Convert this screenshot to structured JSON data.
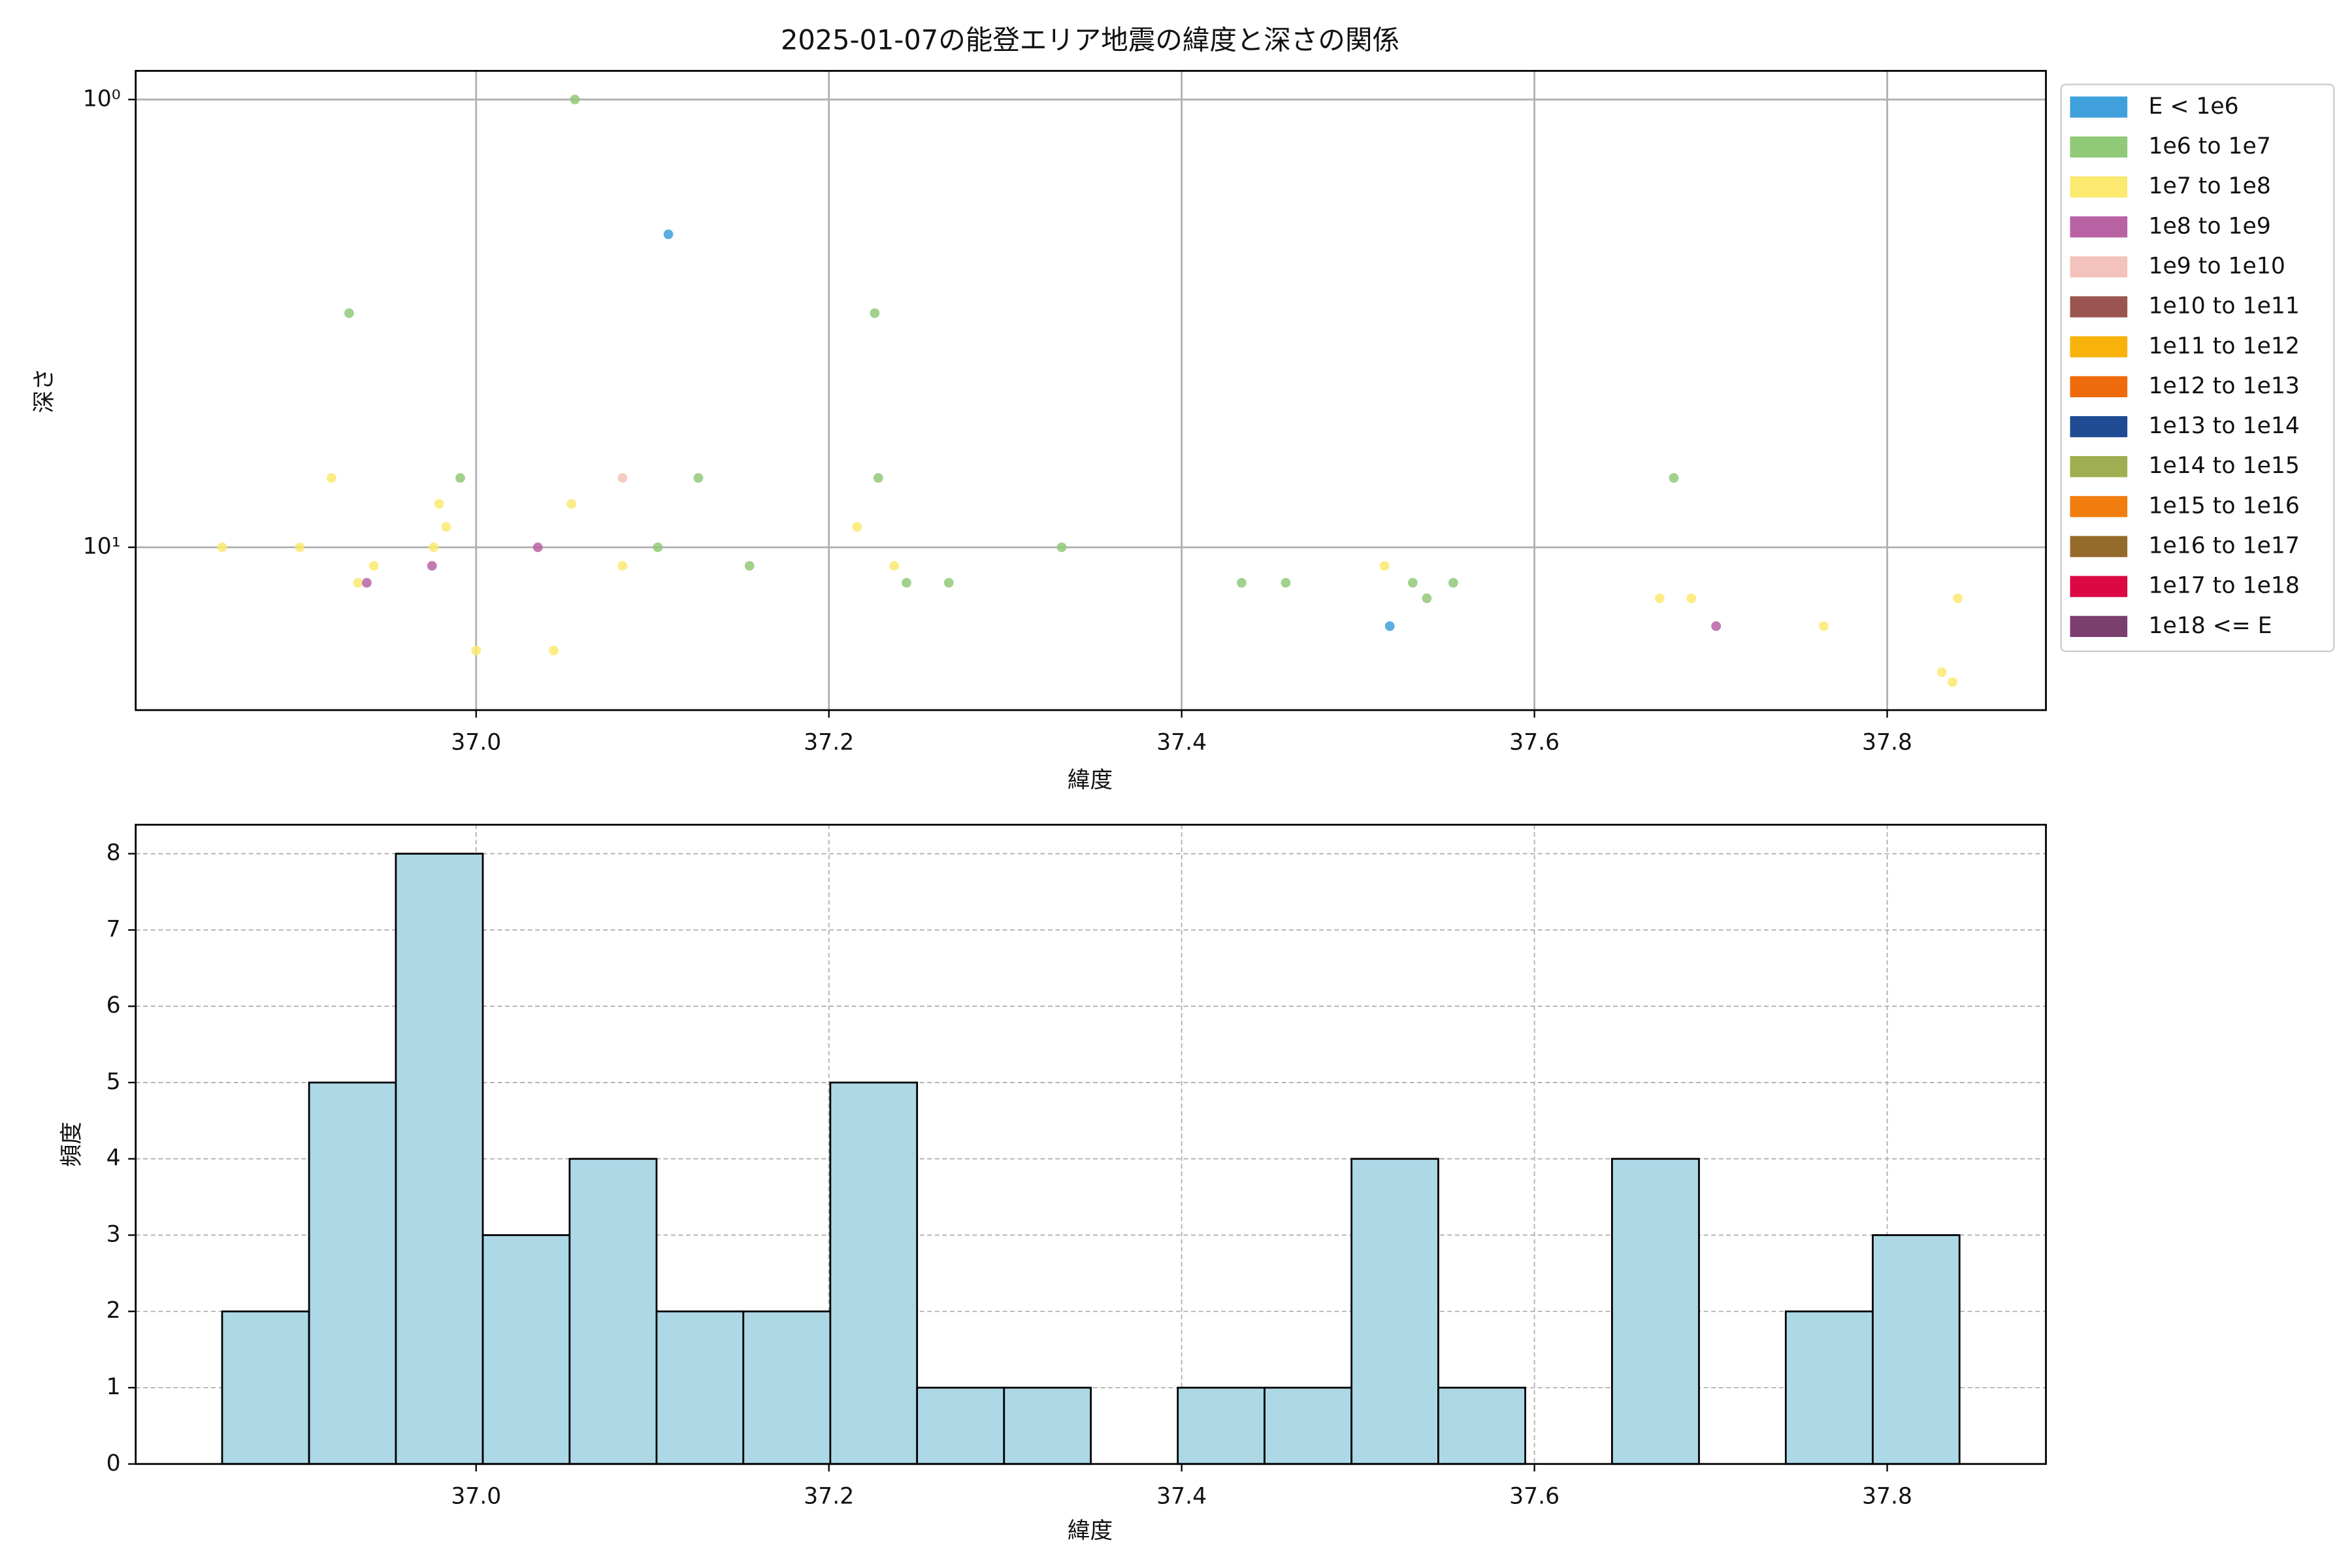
{
  "chart_data": [
    {
      "type": "scatter",
      "title": "2025-01-07の能登エリア地震の緯度と深さの関係",
      "xlabel": "緯度",
      "ylabel": "深さ",
      "xlim": [
        36.807,
        37.89
      ],
      "ylim": [
        0.863,
        23.1
      ],
      "ylog": true,
      "yinverted": true,
      "xticks": [
        {
          "value": 37,
          "label": "37.0"
        },
        37.2,
        37.4,
        37.6,
        37.8
      ],
      "yticks": [
        {
          "value": 1,
          "label": "10⁰"
        },
        {
          "value": 10,
          "label": "10¹"
        }
      ],
      "grid": true,
      "legend": "outside-right",
      "series": [
        {
          "name": "E < 1e6",
          "color": "#3fa0dc",
          "x": [
            37.109,
            37.518
          ],
          "values": [
            2,
            15
          ]
        },
        {
          "name": "1e6 to 1e7",
          "color": "#90c978",
          "x": [
            37.056,
            36.928,
            37.226,
            36.991,
            37.126,
            37.228,
            37.679,
            37.103,
            37.332,
            37.155,
            37.244,
            37.268,
            37.434,
            37.459,
            37.531,
            37.554,
            37.539
          ],
          "values": [
            1,
            3,
            3,
            7,
            7,
            7,
            7,
            10,
            10,
            11,
            12,
            12,
            12,
            12,
            12,
            12,
            13
          ]
        },
        {
          "name": "1e7 to 1e8",
          "color": "#fbe970",
          "x": [
            36.918,
            36.979,
            37.054,
            36.983,
            36.856,
            36.9,
            36.976,
            37.216,
            36.942,
            37.083,
            37.237,
            37.515,
            36.933,
            37.671,
            37.689,
            37.84,
            37.764,
            37.0,
            37.044,
            37.831,
            37.837
          ],
          "values": [
            7,
            8,
            8,
            9,
            10,
            10,
            10,
            9,
            11,
            11,
            11,
            11,
            12,
            13,
            13,
            13,
            15,
            17,
            17,
            19,
            20
          ]
        },
        {
          "name": "1e8 to 1e9",
          "color": "#b862a4",
          "x": [
            37.035,
            36.975,
            36.938,
            37.703
          ],
          "values": [
            10,
            11,
            12,
            15
          ]
        },
        {
          "name": "1e9 to 1e10",
          "color": "#f4c2bc",
          "x": [
            37.083
          ],
          "values": [
            7
          ]
        },
        {
          "name": "1e10 to 1e11",
          "color": "#9b5550",
          "x": [],
          "values": []
        },
        {
          "name": "1e11 to 1e12",
          "color": "#f7b30c",
          "x": [],
          "values": []
        },
        {
          "name": "1e12 to 1e13",
          "color": "#ef6a0b",
          "x": [],
          "values": []
        },
        {
          "name": "1e13 to 1e14",
          "color": "#1e4b92",
          "x": [],
          "values": []
        },
        {
          "name": "1e14 to 1e15",
          "color": "#9eae50",
          "x": [],
          "values": []
        },
        {
          "name": "1e15 to 1e16",
          "color": "#f07d0e",
          "x": [],
          "values": []
        },
        {
          "name": "1e16 to 1e17",
          "color": "#946b2a",
          "x": [],
          "values": []
        },
        {
          "name": "1e17 to 1e18",
          "color": "#dc0843",
          "x": [],
          "values": []
        },
        {
          "name": "1e18 <= E",
          "color": "#7a3f6e",
          "x": [],
          "values": []
        }
      ]
    },
    {
      "type": "histogram",
      "xlabel": "緯度",
      "ylabel": "頻度",
      "xlim": [
        36.807,
        37.89
      ],
      "ylim": [
        0,
        8.38
      ],
      "xticks": [
        {
          "value": 37,
          "label": "37.0"
        },
        37.2,
        37.4,
        37.6,
        37.8
      ],
      "yticks": [
        0,
        1,
        2,
        3,
        4,
        5,
        6,
        7,
        8
      ],
      "grid": true,
      "color": "#add8e6",
      "edgecolor": "#000000",
      "bins": [
        36.856,
        36.9053,
        36.9545,
        37.0038,
        37.053,
        37.1023,
        37.1515,
        37.2008,
        37.25,
        37.2993,
        37.3485,
        37.3978,
        37.447,
        37.4963,
        37.5455,
        37.5948,
        37.644,
        37.6933,
        37.7425,
        37.7918,
        37.841
      ],
      "values": [
        2,
        5,
        8,
        3,
        4,
        2,
        2,
        5,
        1,
        1,
        0,
        1,
        1,
        4,
        1,
        0,
        4,
        0,
        2,
        3
      ]
    }
  ]
}
